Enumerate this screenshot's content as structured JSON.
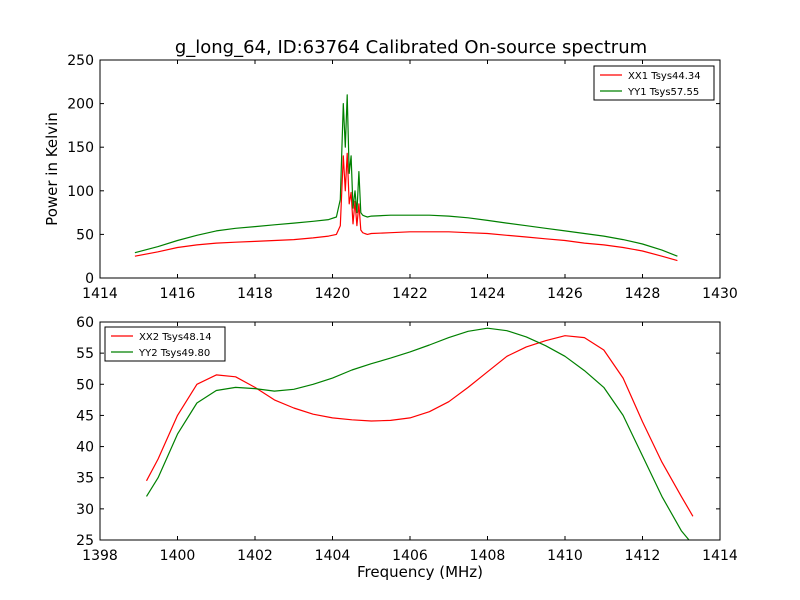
{
  "title": "g_long_64, ID:63764 Calibrated On-source spectrum",
  "chart_data": [
    {
      "type": "line",
      "ylabel": "Power in Kelvin",
      "xlabel": "",
      "xlim": [
        1414,
        1430
      ],
      "ylim": [
        0,
        250
      ],
      "xticks": [
        1414,
        1416,
        1418,
        1420,
        1422,
        1424,
        1426,
        1428,
        1430
      ],
      "yticks": [
        0,
        50,
        100,
        150,
        200,
        250
      ],
      "legend_position": "top-right",
      "grid": false,
      "series": [
        {
          "name": "XX1 Tsys44.34",
          "color": "#ff0000",
          "x": [
            1414.9,
            1415.5,
            1416.0,
            1416.5,
            1417.0,
            1417.5,
            1418.0,
            1418.5,
            1419.0,
            1419.5,
            1419.9,
            1420.1,
            1420.2,
            1420.28,
            1420.33,
            1420.38,
            1420.43,
            1420.48,
            1420.53,
            1420.58,
            1420.63,
            1420.68,
            1420.73,
            1420.78,
            1420.83,
            1420.9,
            1421.0,
            1421.5,
            1422.0,
            1422.5,
            1423.0,
            1423.5,
            1424.0,
            1424.5,
            1425.0,
            1425.5,
            1426.0,
            1426.5,
            1427.0,
            1427.5,
            1428.0,
            1428.5,
            1428.9
          ],
          "y": [
            25,
            30,
            35,
            38,
            40,
            41,
            42,
            43,
            44,
            46,
            48,
            50,
            60,
            140,
            100,
            143,
            85,
            98,
            62,
            88,
            60,
            85,
            55,
            52,
            51,
            50,
            51,
            52,
            53,
            53,
            53,
            52,
            51,
            49,
            47,
            45,
            43,
            40,
            38,
            35,
            31,
            25,
            20
          ]
        },
        {
          "name": "YY1 Tsys57.55",
          "color": "#008000",
          "x": [
            1414.9,
            1415.5,
            1416.0,
            1416.5,
            1417.0,
            1417.5,
            1418.0,
            1418.5,
            1419.0,
            1419.5,
            1419.9,
            1420.1,
            1420.2,
            1420.28,
            1420.33,
            1420.38,
            1420.43,
            1420.48,
            1420.53,
            1420.58,
            1420.63,
            1420.68,
            1420.73,
            1420.78,
            1420.83,
            1420.9,
            1421.0,
            1421.5,
            1422.0,
            1422.5,
            1423.0,
            1423.5,
            1424.0,
            1424.5,
            1425.0,
            1425.5,
            1426.0,
            1426.5,
            1427.0,
            1427.5,
            1428.0,
            1428.5,
            1428.9
          ],
          "y": [
            29,
            36,
            43,
            49,
            54,
            57,
            59,
            61,
            63,
            65,
            67,
            70,
            90,
            200,
            150,
            210,
            120,
            140,
            80,
            100,
            75,
            122,
            75,
            72,
            71,
            70,
            71,
            72,
            72,
            72,
            71,
            69,
            66,
            63,
            60,
            57,
            54,
            51,
            48,
            44,
            39,
            32,
            25
          ]
        }
      ]
    },
    {
      "type": "line",
      "xlabel": "Frequency (MHz)",
      "ylabel": "",
      "xlim": [
        1398,
        1414
      ],
      "ylim": [
        25,
        60
      ],
      "xticks": [
        1398,
        1400,
        1402,
        1404,
        1406,
        1408,
        1410,
        1412,
        1414
      ],
      "yticks": [
        25,
        30,
        35,
        40,
        45,
        50,
        55,
        60
      ],
      "legend_position": "top-left",
      "grid": false,
      "series": [
        {
          "name": "XX2 Tsys48.14",
          "color": "#ff0000",
          "x": [
            1399.2,
            1399.5,
            1400.0,
            1400.5,
            1401.0,
            1401.5,
            1402.0,
            1402.5,
            1403.0,
            1403.5,
            1404.0,
            1404.5,
            1405.0,
            1405.5,
            1406.0,
            1406.5,
            1407.0,
            1407.5,
            1408.0,
            1408.5,
            1409.0,
            1409.5,
            1410.0,
            1410.5,
            1411.0,
            1411.5,
            1412.0,
            1412.5,
            1413.0,
            1413.3
          ],
          "y": [
            34.5,
            38,
            45,
            50,
            51.5,
            51.2,
            49.5,
            47.5,
            46.2,
            45.2,
            44.6,
            44.3,
            44.1,
            44.2,
            44.6,
            45.6,
            47.2,
            49.5,
            52,
            54.5,
            56,
            57,
            57.8,
            57.5,
            55.5,
            51,
            44,
            37.5,
            32,
            28.8
          ]
        },
        {
          "name": "YY2 Tsys49.80",
          "color": "#008000",
          "x": [
            1399.2,
            1399.5,
            1400.0,
            1400.5,
            1401.0,
            1401.5,
            1402.0,
            1402.5,
            1403.0,
            1403.5,
            1404.0,
            1404.5,
            1405.0,
            1405.5,
            1406.0,
            1406.5,
            1407.0,
            1407.5,
            1408.0,
            1408.5,
            1409.0,
            1409.5,
            1410.0,
            1410.5,
            1411.0,
            1411.5,
            1412.0,
            1412.5,
            1413.0,
            1413.2
          ],
          "y": [
            32,
            35,
            42,
            47,
            49,
            49.5,
            49.3,
            48.9,
            49.2,
            50,
            51,
            52.3,
            53.3,
            54.2,
            55.2,
            56.3,
            57.5,
            58.5,
            59,
            58.6,
            57.6,
            56.2,
            54.5,
            52.2,
            49.5,
            45,
            38.5,
            32,
            26.5,
            25
          ]
        }
      ]
    }
  ]
}
